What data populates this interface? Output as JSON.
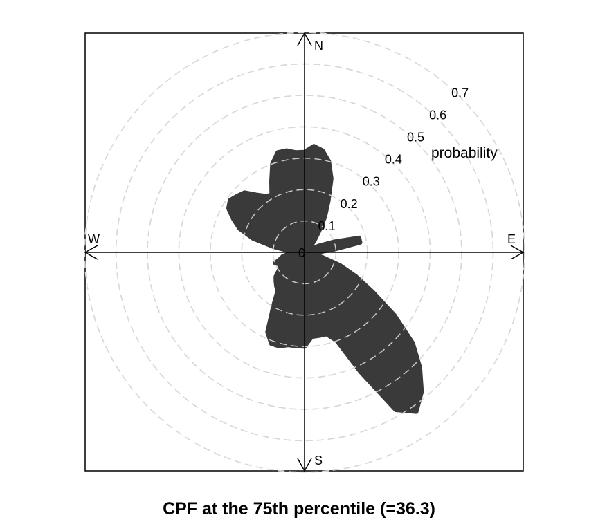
{
  "chart_data": {
    "type": "polar",
    "title": "CPF at the 75th percentile (=36.3)",
    "radial_label": "probability",
    "radial_ticks": [
      "0",
      "0.1",
      "0.2",
      "0.3",
      "0.4",
      "0.5",
      "0.6",
      "0.7"
    ],
    "radial_tick_values": [
      0,
      0.1,
      0.2,
      0.3,
      0.4,
      0.5,
      0.6,
      0.7
    ],
    "rlim": [
      0,
      0.7
    ],
    "directions": [
      "N",
      "E",
      "S",
      "W"
    ],
    "grid": "dashed",
    "fill_color": "#3a3a3a",
    "grid_color": "#cccccc",
    "series": [
      {
        "angle_deg": [
          0,
          5,
          10,
          15,
          20,
          25,
          30,
          35,
          40,
          45,
          50,
          55,
          60,
          65,
          70,
          75,
          80,
          85,
          90,
          95,
          100,
          105,
          110,
          115,
          120,
          125,
          130,
          135,
          140,
          145,
          150,
          155,
          160,
          165,
          170,
          175,
          180,
          185,
          190,
          195,
          200,
          205,
          210,
          215,
          220,
          225,
          230,
          235,
          240,
          245,
          250,
          255,
          260,
          265,
          270,
          275,
          280,
          285,
          290,
          295,
          300,
          305,
          310,
          315,
          320,
          325,
          330,
          335,
          340,
          345,
          350,
          355
        ],
        "probability": [
          0.32,
          0.34,
          0.33,
          0.3,
          0.25,
          0.18,
          0.13,
          0.08,
          0.05,
          0.03,
          0.03,
          0.02,
          0.02,
          0.05,
          0.1,
          0.18,
          0.18,
          0.09,
          0.04,
          0.03,
          0.03,
          0.06,
          0.12,
          0.18,
          0.25,
          0.35,
          0.45,
          0.52,
          0.58,
          0.62,
          0.58,
          0.42,
          0.3,
          0.27,
          0.27,
          0.27,
          0.3,
          0.3,
          0.3,
          0.31,
          0.31,
          0.28,
          0.2,
          0.15,
          0.14,
          0.13,
          0.12,
          0.1,
          0.09,
          0.09,
          0.1,
          0.08,
          0.07,
          0.05,
          0.04,
          0.05,
          0.1,
          0.17,
          0.22,
          0.25,
          0.28,
          0.29,
          0.28,
          0.27,
          0.24,
          0.22,
          0.21,
          0.25,
          0.3,
          0.33,
          0.33,
          0.32
        ]
      }
    ]
  }
}
